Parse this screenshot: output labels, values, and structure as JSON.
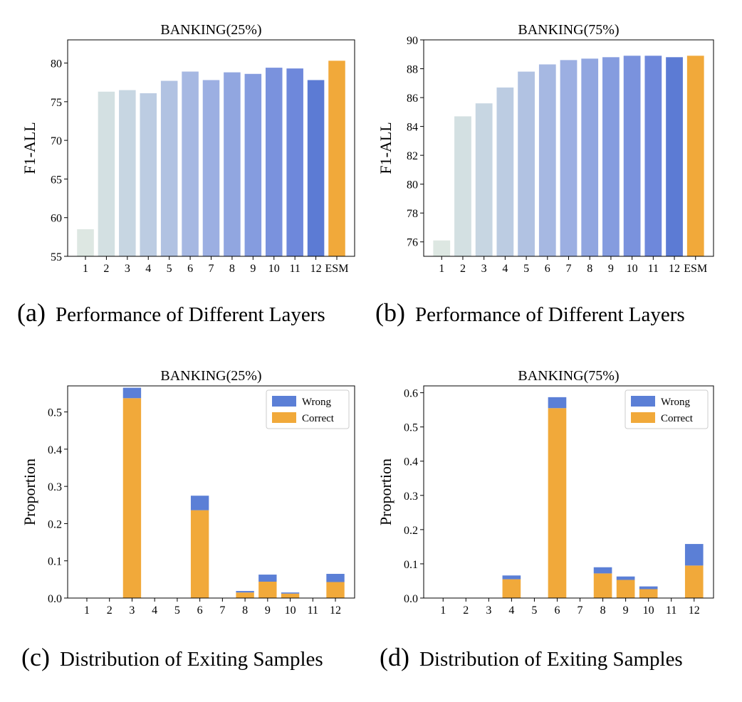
{
  "colors": {
    "esm": "#F1A93A",
    "wrong": "#5B7FD6",
    "correct": "#F1A93A",
    "layer_gradient": [
      "#DDE7E2",
      "#D3E0E2",
      "#C7D6E2",
      "#BCCCE2",
      "#B1C2E2",
      "#A6B8E2",
      "#9CAFE2",
      "#91A6E0",
      "#859CDF",
      "#7A92DD",
      "#6E88DB",
      "#5C7BD4"
    ]
  },
  "captions": [
    {
      "tag": "(a)",
      "text": "Performance of Different Layers"
    },
    {
      "tag": "(b)",
      "text": "Performance of Different Layers"
    },
    {
      "tag": "(c)",
      "text": "Distribution of Exiting Samples"
    },
    {
      "tag": "(d)",
      "text": "Distribution of Exiting Samples"
    }
  ],
  "chart_data": [
    {
      "type": "bar",
      "title": "BANKING(25%)",
      "xlabel": "",
      "ylabel": "F1-ALL",
      "categories": [
        "1",
        "2",
        "3",
        "4",
        "5",
        "6",
        "7",
        "8",
        "9",
        "10",
        "11",
        "12",
        "ESM"
      ],
      "values": [
        58.5,
        76.3,
        76.5,
        76.1,
        77.7,
        78.9,
        77.8,
        78.8,
        78.6,
        79.4,
        79.3,
        77.8,
        80.3
      ],
      "ylim": [
        55,
        83
      ],
      "yticks": [
        55,
        60,
        65,
        70,
        75,
        80
      ],
      "ytick_labels": [
        "55",
        "60",
        "65",
        "70",
        "75",
        "80"
      ]
    },
    {
      "type": "bar",
      "title": "BANKING(75%)",
      "xlabel": "",
      "ylabel": "F1-ALL",
      "categories": [
        "1",
        "2",
        "3",
        "4",
        "5",
        "6",
        "7",
        "8",
        "9",
        "10",
        "11",
        "12",
        "ESM"
      ],
      "values": [
        76.1,
        84.7,
        85.6,
        86.7,
        87.8,
        88.3,
        88.6,
        88.7,
        88.8,
        88.9,
        88.9,
        88.8,
        88.9
      ],
      "ylim": [
        75,
        90
      ],
      "yticks": [
        76,
        78,
        80,
        82,
        84,
        86,
        88,
        90
      ],
      "ytick_labels": [
        "76",
        "78",
        "80",
        "82",
        "84",
        "86",
        "88",
        "90"
      ]
    },
    {
      "type": "bar",
      "stacked": true,
      "title": "BANKING(25%)",
      "xlabel": "",
      "ylabel": "Proportion",
      "categories": [
        "1",
        "2",
        "3",
        "4",
        "5",
        "6",
        "7",
        "8",
        "9",
        "10",
        "11",
        "12"
      ],
      "series": [
        {
          "name": "Correct",
          "values": [
            0,
            0,
            0.537,
            0,
            0,
            0.236,
            0,
            0.015,
            0.044,
            0.012,
            0,
            0.043
          ]
        },
        {
          "name": "Wrong",
          "values": [
            0,
            0,
            0.028,
            0,
            0,
            0.039,
            0,
            0.004,
            0.019,
            0.003,
            0,
            0.022
          ]
        }
      ],
      "ylim": [
        0,
        0.57
      ],
      "yticks": [
        0,
        0.1,
        0.2,
        0.3,
        0.4,
        0.5
      ],
      "ytick_labels": [
        "0.0",
        "0.1",
        "0.2",
        "0.3",
        "0.4",
        "0.5"
      ],
      "legend": [
        "Wrong",
        "Correct"
      ],
      "legend_position": "top-right"
    },
    {
      "type": "bar",
      "stacked": true,
      "title": "BANKING(75%)",
      "xlabel": "",
      "ylabel": "Proportion",
      "categories": [
        "1",
        "2",
        "3",
        "4",
        "5",
        "6",
        "7",
        "8",
        "9",
        "10",
        "11",
        "12"
      ],
      "series": [
        {
          "name": "Correct",
          "values": [
            0,
            0,
            0,
            0.055,
            0,
            0.555,
            0,
            0.072,
            0.053,
            0.026,
            0,
            0.095
          ]
        },
        {
          "name": "Wrong",
          "values": [
            0,
            0,
            0,
            0.011,
            0,
            0.032,
            0,
            0.018,
            0.01,
            0.008,
            0,
            0.063
          ]
        }
      ],
      "ylim": [
        0,
        0.62
      ],
      "yticks": [
        0,
        0.1,
        0.2,
        0.3,
        0.4,
        0.5,
        0.6
      ],
      "ytick_labels": [
        "0.0",
        "0.1",
        "0.2",
        "0.3",
        "0.4",
        "0.5",
        "0.6"
      ],
      "legend": [
        "Wrong",
        "Correct"
      ],
      "legend_position": "top-right"
    }
  ]
}
